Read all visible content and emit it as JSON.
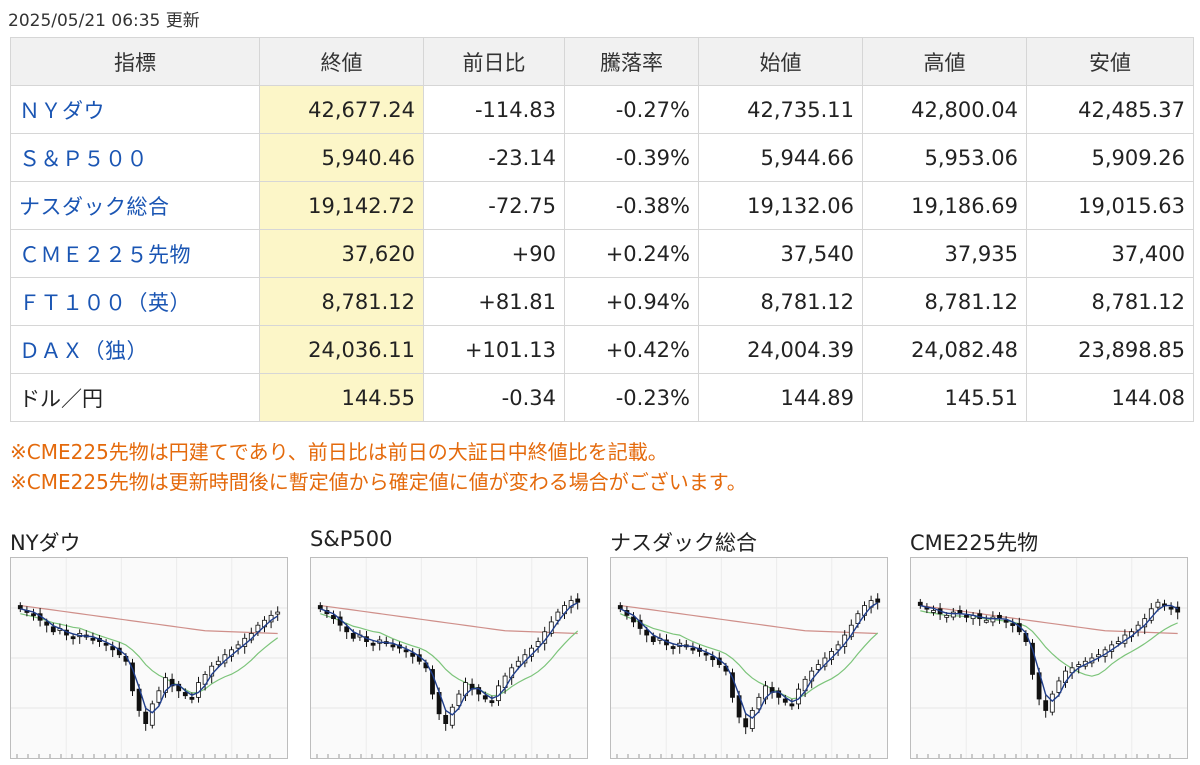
{
  "updated": "2025/05/21 06:35 更新",
  "table": {
    "headers": [
      "指標",
      "終値",
      "前日比",
      "騰落率",
      "始値",
      "高値",
      "安値"
    ],
    "rows": [
      {
        "name": "ＮＹダウ",
        "close": "42,677.24",
        "change": "-114.83",
        "rate": "-0.27%",
        "open": "42,735.11",
        "high": "42,800.04",
        "low": "42,485.37",
        "dir": "neg",
        "link": true
      },
      {
        "name": "Ｓ＆Ｐ５００",
        "close": "5,940.46",
        "change": "-23.14",
        "rate": "-0.39%",
        "open": "5,944.66",
        "high": "5,953.06",
        "low": "5,909.26",
        "dir": "neg",
        "link": true
      },
      {
        "name": "ナスダック総合",
        "close": "19,142.72",
        "change": "-72.75",
        "rate": "-0.38%",
        "open": "19,132.06",
        "high": "19,186.69",
        "low": "19,015.63",
        "dir": "neg",
        "link": true
      },
      {
        "name": "ＣＭＥ２２５先物",
        "close": "37,620",
        "change": "+90",
        "rate": "+0.24%",
        "open": "37,540",
        "high": "37,935",
        "low": "37,400",
        "dir": "pos",
        "link": true
      },
      {
        "name": "ＦＴ１００（英）",
        "close": "8,781.12",
        "change": "+81.81",
        "rate": "+0.94%",
        "open": "8,781.12",
        "high": "8,781.12",
        "low": "8,781.12",
        "dir": "pos",
        "link": true
      },
      {
        "name": "ＤＡＸ（独）",
        "close": "24,036.11",
        "change": "+101.13",
        "rate": "+0.42%",
        "open": "24,004.39",
        "high": "24,082.48",
        "low": "23,898.85",
        "dir": "pos",
        "link": true
      },
      {
        "name": "ドル／円",
        "close": "144.55",
        "change": "-0.34",
        "rate": "-0.23%",
        "open": "144.89",
        "high": "145.51",
        "low": "144.08",
        "dir": "neg",
        "link": false
      }
    ]
  },
  "notes": [
    "※CME225先物は円建てであり、前日比は前日の大証日中終値比を記載。",
    "※CME225先物は更新時間後に暫定値から確定値に値が変わる場合がございます。"
  ],
  "charts": [
    {
      "title": "NYダウ",
      "shape": [
        0.8,
        0.78,
        0.76,
        0.73,
        0.7,
        0.66,
        0.68,
        0.64,
        0.62,
        0.65,
        0.63,
        0.61,
        0.6,
        0.58,
        0.55,
        0.52,
        0.48,
        0.3,
        0.18,
        0.1,
        0.22,
        0.3,
        0.38,
        0.33,
        0.3,
        0.27,
        0.25,
        0.35,
        0.4,
        0.45,
        0.48,
        0.52,
        0.55,
        0.58,
        0.62,
        0.65,
        0.7,
        0.73,
        0.76,
        0.78
      ]
    },
    {
      "title": "S&P500",
      "shape": [
        0.8,
        0.77,
        0.74,
        0.7,
        0.66,
        0.62,
        0.64,
        0.6,
        0.58,
        0.61,
        0.59,
        0.57,
        0.56,
        0.54,
        0.51,
        0.48,
        0.44,
        0.28,
        0.16,
        0.1,
        0.2,
        0.28,
        0.35,
        0.31,
        0.28,
        0.25,
        0.23,
        0.33,
        0.39,
        0.44,
        0.48,
        0.52,
        0.56,
        0.6,
        0.66,
        0.72,
        0.78,
        0.82,
        0.85,
        0.84
      ]
    },
    {
      "title": "ナスダック総合",
      "shape": [
        0.8,
        0.76,
        0.72,
        0.68,
        0.64,
        0.6,
        0.62,
        0.58,
        0.56,
        0.59,
        0.57,
        0.55,
        0.54,
        0.52,
        0.49,
        0.46,
        0.42,
        0.26,
        0.14,
        0.08,
        0.18,
        0.26,
        0.33,
        0.29,
        0.26,
        0.23,
        0.21,
        0.31,
        0.37,
        0.42,
        0.46,
        0.5,
        0.54,
        0.58,
        0.64,
        0.7,
        0.77,
        0.82,
        0.85,
        0.84
      ]
    },
    {
      "title": "CME225先物",
      "shape": [
        0.82,
        0.8,
        0.79,
        0.77,
        0.76,
        0.78,
        0.77,
        0.75,
        0.76,
        0.74,
        0.73,
        0.75,
        0.74,
        0.72,
        0.7,
        0.66,
        0.6,
        0.4,
        0.25,
        0.18,
        0.28,
        0.36,
        0.42,
        0.44,
        0.46,
        0.48,
        0.5,
        0.52,
        0.55,
        0.58,
        0.6,
        0.64,
        0.66,
        0.7,
        0.74,
        0.8,
        0.84,
        0.82,
        0.8,
        0.78
      ]
    }
  ],
  "colors": {
    "up": "#e0201f",
    "down": "#1a3f9e",
    "link": "#1a55b3",
    "note": "#e46a0c",
    "close_bg": "#fcf6c8",
    "ma_short": "#1f3d8a",
    "ma_mid": "#7cc47a",
    "ma_long": "#cf8f8a"
  }
}
